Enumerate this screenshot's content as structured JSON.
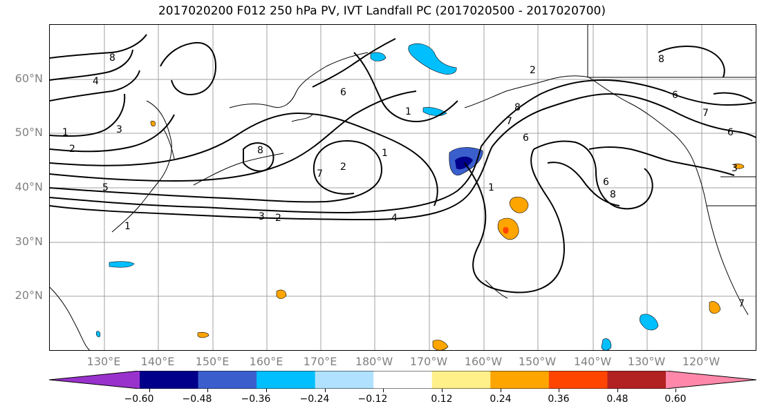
{
  "title": "2017020200 F012 250 hPa PV, IVT Landfall PC (2017020500 - 2017020700)",
  "lat_labels": [
    "60°N",
    "50°N",
    "40°N",
    "30°N",
    "20°N"
  ],
  "lon_labels": [
    "130°E",
    "140°E",
    "150°E",
    "160°E",
    "170°E",
    "180°W",
    "170°W",
    "160°W",
    "150°W",
    "140°W",
    "130°W",
    "120°W"
  ],
  "colorbar": {
    "colors": [
      "#9932cc",
      "#00008b",
      "#3a5fcd",
      "#00bfff",
      "#b0e2ff",
      "#ffffff",
      "#fff08a",
      "#ffa500",
      "#ff4500",
      "#b22222",
      "#ff88aa"
    ],
    "ticks": [
      "−0.60",
      "−0.48",
      "−0.36",
      "−0.24",
      "−0.12",
      "0.12",
      "0.24",
      "0.36",
      "0.48",
      "0.60"
    ]
  },
  "contour_labels": [
    "8",
    "4",
    "1",
    "2",
    "3",
    "5",
    "6",
    "7",
    "8",
    "2",
    "1",
    "3",
    "2",
    "4",
    "6",
    "7",
    "1",
    "1",
    "8",
    "6",
    "2",
    "7",
    "6",
    "8",
    "3",
    "1",
    "6",
    "8",
    "7"
  ]
}
